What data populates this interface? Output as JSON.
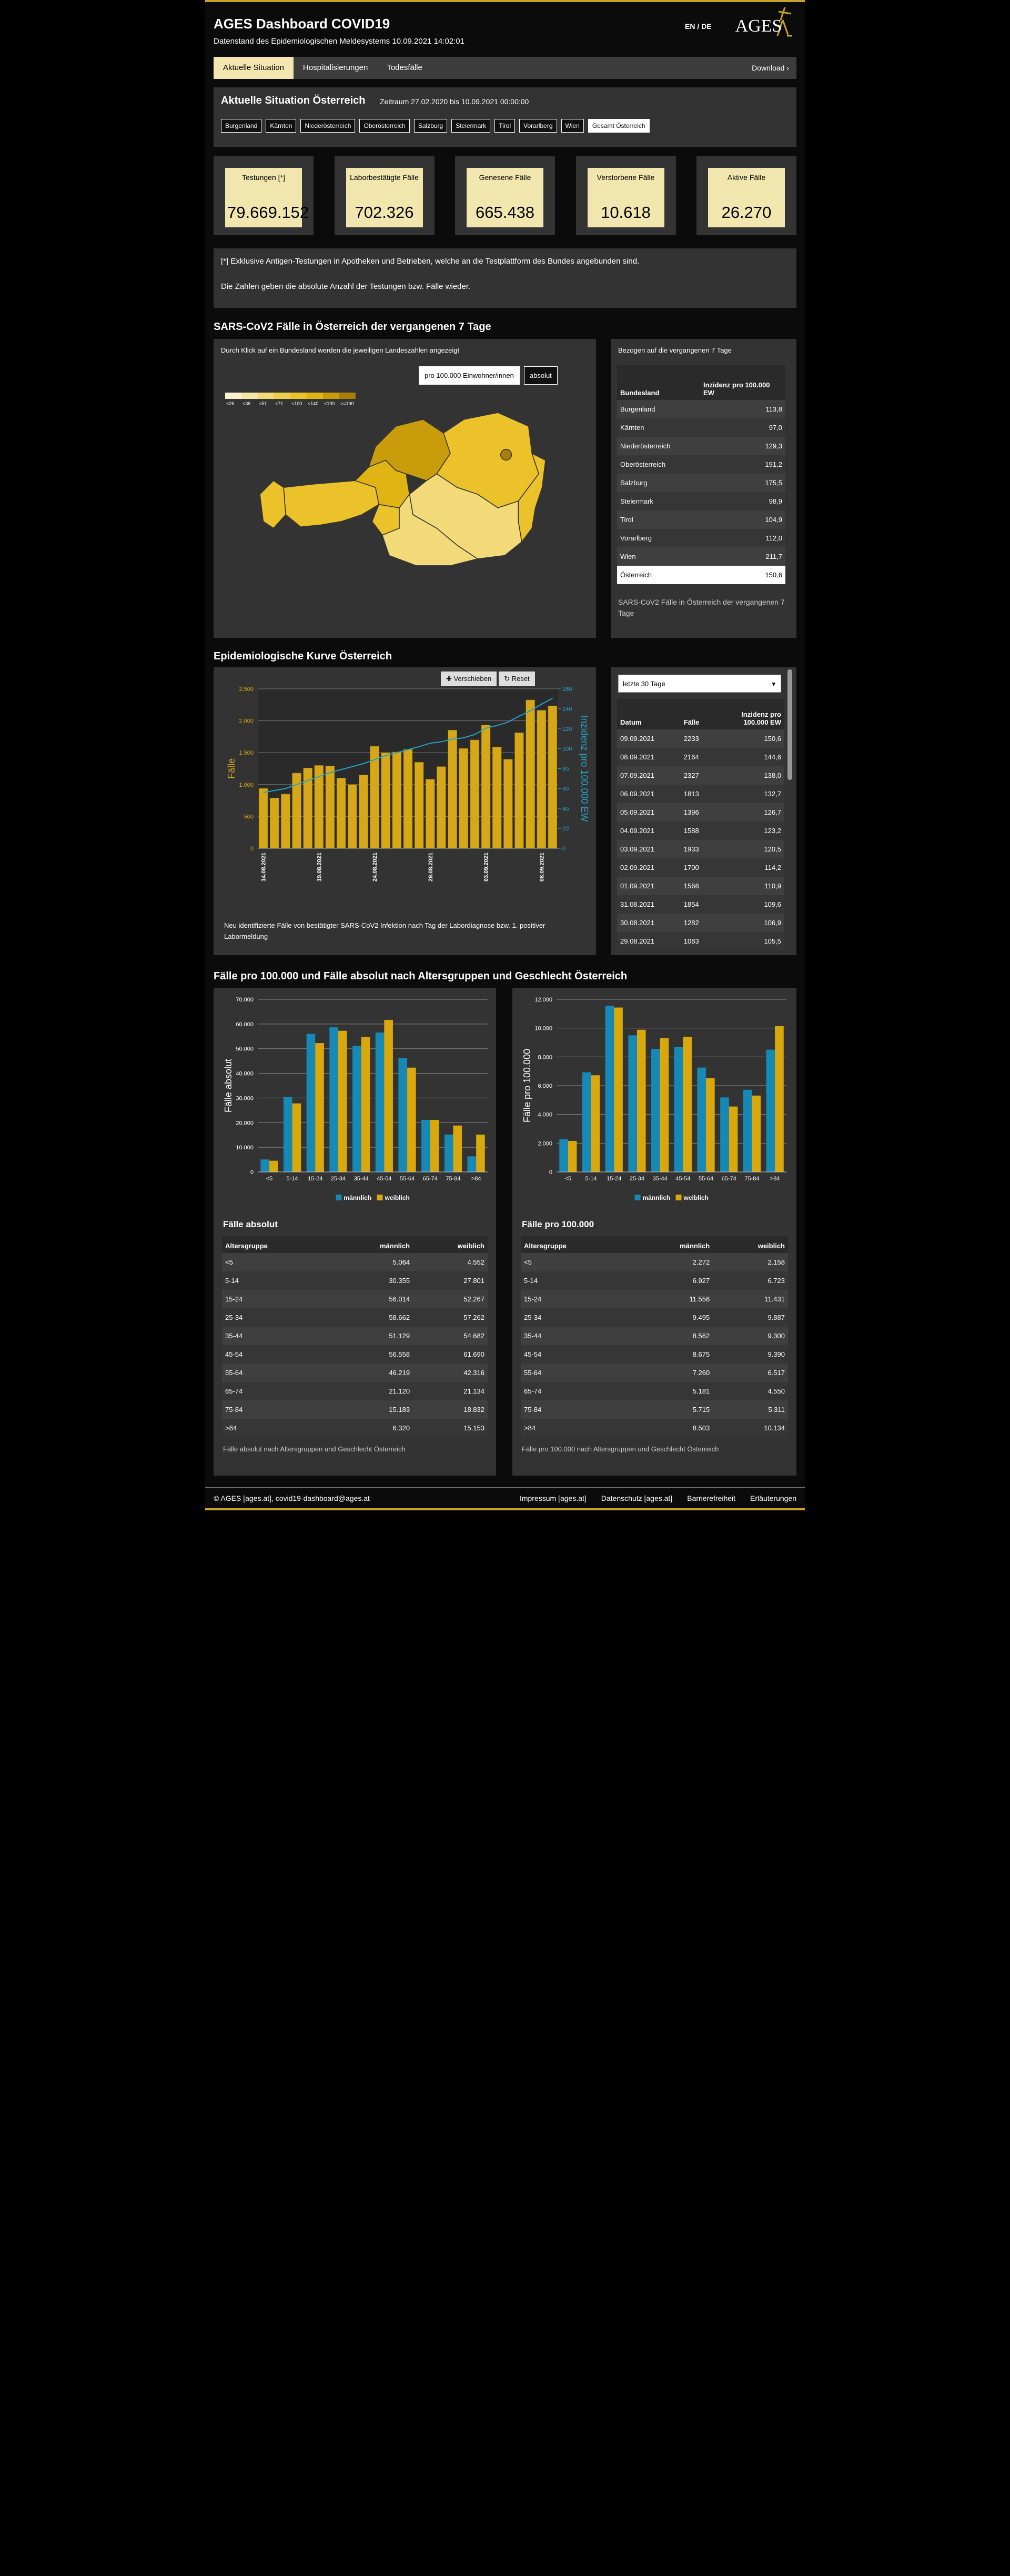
{
  "header": {
    "title": "AGES Dashboard COVID19",
    "subtitle": "Datenstand des Epidemiologischen Meldesystems 10.09.2021 14:02:01",
    "lang_en": "EN",
    "lang_sep": "/",
    "lang_de": "DE",
    "logo": "AGES"
  },
  "tabs": [
    "Aktuelle Situation",
    "Hospitalisierungen",
    "Todesfälle"
  ],
  "download": "Download ›",
  "situation": {
    "title": "Aktuelle Situation Österreich",
    "period": "Zeitraum 27.02.2020 bis 10.09.2021 00:00:00",
    "regions": [
      "Burgenland",
      "Kärnten",
      "Niederösterreich",
      "Oberösterreich",
      "Salzburg",
      "Steiermark",
      "Tirol",
      "Vorarlberg",
      "Wien",
      "Gesamt Österreich"
    ],
    "kpis": [
      {
        "label": "Testungen [*]",
        "value": "79.669.152"
      },
      {
        "label": "Laborbestätigte Fälle",
        "value": "702.326"
      },
      {
        "label": "Genesene Fälle",
        "value": "665.438"
      },
      {
        "label": "Verstorbene Fälle",
        "value": "10.618"
      },
      {
        "label": "Aktive Fälle",
        "value": "26.270"
      }
    ]
  },
  "note": [
    "[*] Exklusive Antigen-Testungen in Apotheken und Betrieben, welche an die Testplattform des Bundes angebunden sind.",
    "Die Zahlen geben die absolute Anzahl der Testungen bzw. Fälle wieder."
  ],
  "map_section": {
    "title": "SARS-CoV2 Fälle in Österreich der vergangenen 7 Tage",
    "hint": "Durch Klick auf ein Bundesland werden die jeweiligen Landeszahlen angezeigt",
    "buttons": [
      "pro 100.000 Einwohner/innen",
      "absolut"
    ],
    "legend": [
      {
        "label": "<26",
        "color": "#fbf3d0"
      },
      {
        "label": "<36",
        "color": "#f7e7a4"
      },
      {
        "label": "<51",
        "color": "#f3da78"
      },
      {
        "label": "<71",
        "color": "#efce4e"
      },
      {
        "label": "<100",
        "color": "#ecc22a"
      },
      {
        "label": "<140",
        "color": "#e0b413"
      },
      {
        "label": "<190",
        "color": "#c99c0c"
      },
      {
        "label": ">=190",
        "color": "#a87f06"
      }
    ],
    "table": {
      "caption_top": "Bezogen auf die vergangenen 7 Tage",
      "headers": [
        "Bundesland",
        "Inzidenz pro 100.000 EW"
      ],
      "rows": [
        [
          "Burgenland",
          "113,8"
        ],
        [
          "Kärnten",
          "97,0"
        ],
        [
          "Niederösterreich",
          "129,3"
        ],
        [
          "Oberösterreich",
          "191,2"
        ],
        [
          "Salzburg",
          "175,5"
        ],
        [
          "Steiermark",
          "98,9"
        ],
        [
          "Tirol",
          "104,9"
        ],
        [
          "Vorarlberg",
          "112,0"
        ],
        [
          "Wien",
          "211,7"
        ],
        [
          "Österreich",
          "150,6"
        ]
      ],
      "caption": "SARS-CoV2 Fälle in Österreich der vergangenen 7 Tage"
    }
  },
  "epi_section": {
    "title": "Epidemiologische Kurve Österreich",
    "buttons": [
      "Verschieben",
      "Reset"
    ],
    "chart": {
      "type": "bar",
      "y_label": "Fälle",
      "y2_label": "Inzidenz pro 100.000 EW",
      "categories": [
        "14.08.2021",
        null,
        null,
        null,
        null,
        "19.08.2021",
        null,
        null,
        null,
        null,
        "24.08.2021",
        null,
        null,
        null,
        null,
        "29.08.2021",
        null,
        null,
        null,
        null,
        "03.09.2021",
        null,
        null,
        null,
        null,
        "08.09.2021",
        null
      ],
      "series": [
        {
          "color": "#d6a716",
          "values": [
            940,
            790,
            850,
            1180,
            1260,
            1300,
            1290,
            1100,
            1000,
            1150,
            1600,
            1500,
            1510,
            1550,
            1350,
            1083,
            1282,
            1854,
            1566,
            1700,
            1933,
            1588,
            1396,
            1813,
            2327,
            2164,
            2233
          ]
        },
        {
          "type": "line",
          "axis": "y2",
          "color": "#22a5c8",
          "values": [
            56,
            58,
            60,
            64,
            68,
            72,
            76,
            79,
            82,
            85,
            89,
            93,
            96,
            99,
            102,
            105.5,
            106.9,
            109.6,
            110.9,
            114.2,
            120.5,
            123.2,
            126.7,
            132.7,
            138.0,
            144.6,
            150.6
          ]
        }
      ],
      "ylim": [
        0,
        2500
      ],
      "yticks": [
        0,
        500,
        {
          "value": 1000,
          "label": "1.000"
        },
        {
          "value": 1500,
          "label": "1.500"
        },
        {
          "value": 2000,
          "label": "2.000"
        },
        {
          "value": 2500,
          "label": "2.500"
        }
      ],
      "y2lim": [
        0,
        160
      ],
      "y2ticks": [
        0,
        20,
        40,
        60,
        80,
        100,
        120,
        140,
        160
      ],
      "grid": true
    },
    "caption": "Neu identifizierte Fälle von bestätigter SARS-CoV2 Infektion nach Tag der Labordiagnose bzw. 1. positiver Labormeldung",
    "table": {
      "select": "letzte 30 Tage",
      "headers": [
        "Datum",
        "Fälle",
        "Inzidenz pro 100.000 EW"
      ],
      "rows": [
        [
          "09.09.2021",
          "2233",
          "150,6"
        ],
        [
          "08.09.2021",
          "2164",
          "144,6"
        ],
        [
          "07.09.2021",
          "2327",
          "138,0"
        ],
        [
          "06.09.2021",
          "1813",
          "132,7"
        ],
        [
          "05.09.2021",
          "1396",
          "126,7"
        ],
        [
          "04.09.2021",
          "1588",
          "123,2"
        ],
        [
          "03.09.2021",
          "1933",
          "120,5"
        ],
        [
          "02.09.2021",
          "1700",
          "114,2"
        ],
        [
          "01.09.2021",
          "1566",
          "110,9"
        ],
        [
          "31.08.2021",
          "1854",
          "109,6"
        ],
        [
          "30.08.2021",
          "1282",
          "106,9"
        ],
        [
          "29.08.2021",
          "1083",
          "105,5"
        ]
      ]
    }
  },
  "age_section": {
    "title": "Fälle pro 100.000 und Fälle absolut nach Altersgruppen und Geschlecht Österreich",
    "charts": [
      {
        "type": "bar",
        "y_label": "Fälle absolut",
        "categories": [
          "<5",
          "5-14",
          "15-24",
          "25-34",
          "35-44",
          "45-54",
          "55-64",
          "65-74",
          "75-84",
          ">84"
        ],
        "series": [
          {
            "name": "männlich",
            "color": "#1689b6",
            "values": [
              5064,
              30355,
              56014,
              58662,
              51129,
              56558,
              46219,
              21120,
              15183,
              6320
            ],
            "value_labels": [
              "5.064",
              "30.355",
              "56.014",
              "58.662",
              "51.129",
              "56.558",
              "46.219",
              "21.120",
              "15.183",
              "6.320"
            ]
          },
          {
            "name": "weiblich",
            "color": "#d8a80c",
            "values": [
              4552,
              27801,
              52267,
              57262,
              54682,
              61690,
              42316,
              21134,
              18832,
              15153
            ],
            "value_labels": [
              "4.552",
              "27.801",
              "52.267",
              "57.262",
              "54.682",
              "61.690",
              "42.316",
              "21.134",
              "18.832",
              "15.153"
            ]
          }
        ],
        "ylim": [
          0,
          70000
        ],
        "yticks": [
          0,
          {
            "value": 10000,
            "label": "10.000"
          },
          {
            "value": 20000,
            "label": "20.000"
          },
          {
            "value": 30000,
            "label": "30.000"
          },
          {
            "value": 40000,
            "label": "40.000"
          },
          {
            "value": 50000,
            "label": "50.000"
          },
          {
            "value": 60000,
            "label": "60.000"
          },
          {
            "value": 70000,
            "label": "70.000"
          }
        ],
        "grid": true,
        "table_title": "Fälle absolut",
        "headers": [
          "Altersgruppe",
          "männlich",
          "weiblich"
        ],
        "caption": "Fälle absolut nach Altersgruppen und Geschlecht Österreich"
      },
      {
        "type": "bar",
        "y_label": "Fälle pro 100.000",
        "categories": [
          "<5",
          "5-14",
          "15-24",
          "25-34",
          "35-44",
          "45-54",
          "55-64",
          "65-74",
          "75-84",
          ">84"
        ],
        "series": [
          {
            "name": "männlich",
            "color": "#1689b6",
            "values": [
              2272,
              6927,
              11556,
              9495,
              8562,
              8675,
              7260,
              5181,
              5715,
              8503
            ],
            "value_labels": [
              "2.272",
              "6.927",
              "11.556",
              "9.495",
              "8.562",
              "8.675",
              "7.260",
              "5.181",
              "5.715",
              "8.503"
            ]
          },
          {
            "name": "weiblich",
            "color": "#d8a80c",
            "values": [
              2158,
              6723,
              11431,
              9887,
              9300,
              9390,
              6517,
              4550,
              5311,
              10134
            ],
            "value_labels": [
              "2.158",
              "6.723",
              "11.431",
              "9.887",
              "9.300",
              "9.390",
              "6.517",
              "4.550",
              "5.311",
              "10.134"
            ]
          }
        ],
        "ylim": [
          0,
          12000
        ],
        "yticks": [
          0,
          {
            "value": 2000,
            "label": "2.000"
          },
          {
            "value": 4000,
            "label": "4.000"
          },
          {
            "value": 6000,
            "label": "6.000"
          },
          {
            "value": 8000,
            "label": "8.000"
          },
          {
            "value": 10000,
            "label": "10.000"
          },
          {
            "value": 12000,
            "label": "12.000"
          }
        ],
        "grid": true,
        "table_title": "Fälle pro 100.000",
        "headers": [
          "Altersgruppe",
          "männlich",
          "weiblich"
        ],
        "caption": "Fälle pro 100.000 nach Altersgruppen und Geschlecht Österreich"
      }
    ]
  },
  "footer": {
    "copyright": "© AGES [ages.at], covid19-dashboard@ages.at",
    "links": [
      "Impressum [ages.at]",
      "Datenschutz [ages.at]",
      "Barrierefreiheit",
      "Erläuterungen"
    ]
  }
}
